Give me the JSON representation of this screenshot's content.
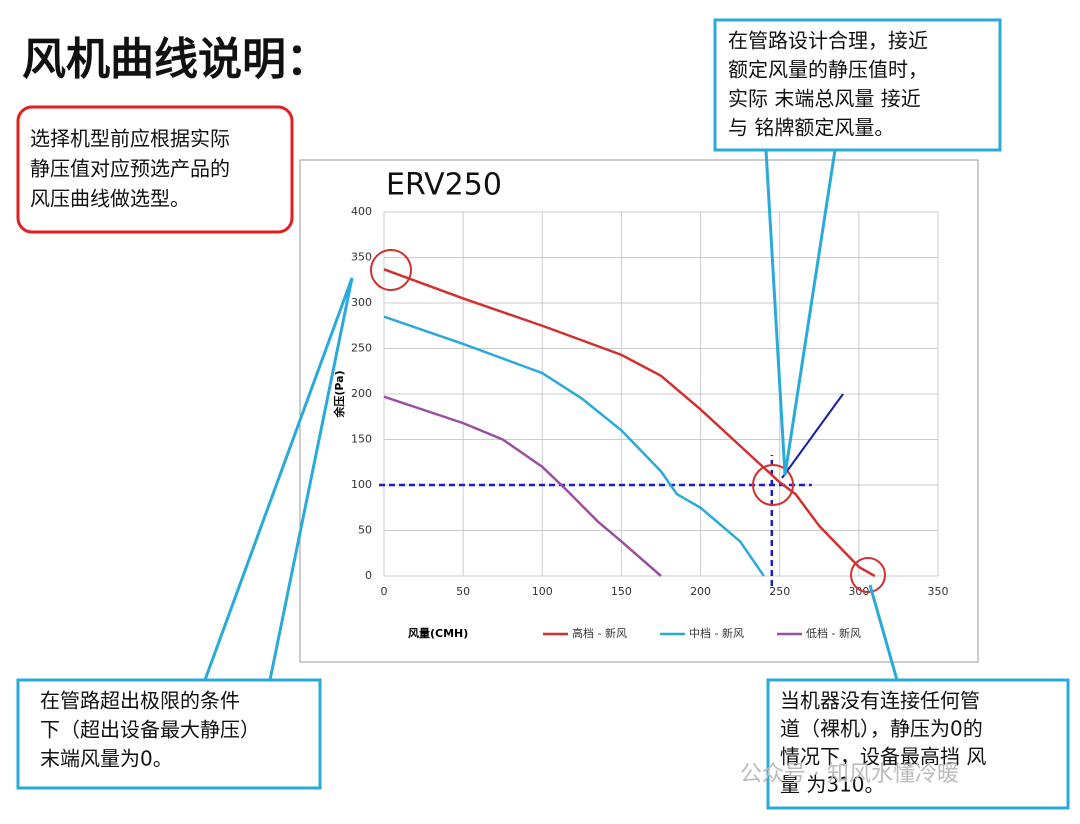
{
  "heading": "风机曲线说明：",
  "note_selection": {
    "lines": [
      "选择机型前应根据实际",
      "静压值对应预选产品的",
      "风压曲线做选型。"
    ]
  },
  "note_rated": {
    "lines": [
      "在管路设计合理，接近",
      "额定风量的静压值时，",
      "实际 末端总风量 接近",
      "与 铭牌额定风量。"
    ]
  },
  "note_limit": {
    "lines": [
      "在管路超出极限的条件",
      "下（超出设备最大静压）",
      "末端风量为0。"
    ]
  },
  "note_free": {
    "lines": [
      "当机器没有连接任何管",
      "道（裸机），静压为0的",
      "情况下，设备最高挡 风",
      "量 为310。"
    ]
  },
  "watermark": "公众号 · 知风水懂冷暖",
  "chart_data": {
    "type": "line",
    "title": "ERV250",
    "x_label": "风量(CMH)",
    "y_label": "余压(Pa)",
    "xlim": [
      0,
      350
    ],
    "xticks": [
      0,
      50,
      100,
      150,
      200,
      250,
      300,
      350
    ],
    "ylim": [
      0,
      400
    ],
    "yticks": [
      0,
      50,
      100,
      150,
      200,
      250,
      300,
      350,
      400
    ],
    "grid": true,
    "reference_lines": {
      "y": 100,
      "x": 245
    },
    "series": [
      {
        "name": "高档 - 新风",
        "color": "#d0302f",
        "x": [
          0,
          50,
          100,
          150,
          175,
          200,
          225,
          250,
          260,
          275,
          300,
          310
        ],
        "values": [
          337,
          305,
          275,
          243,
          220,
          183,
          143,
          103,
          90,
          55,
          10,
          0
        ]
      },
      {
        "name": "中档 - 新风",
        "color": "#2aaad8",
        "x": [
          0,
          50,
          100,
          125,
          150,
          175,
          185,
          200,
          225,
          240
        ],
        "values": [
          285,
          255,
          223,
          195,
          160,
          115,
          90,
          75,
          38,
          0
        ]
      },
      {
        "name": "低档 - 新风",
        "color": "#9b4fa0",
        "x": [
          0,
          50,
          75,
          100,
          115,
          135,
          150,
          175
        ],
        "values": [
          197,
          168,
          150,
          120,
          95,
          60,
          38,
          0
        ]
      }
    ]
  }
}
